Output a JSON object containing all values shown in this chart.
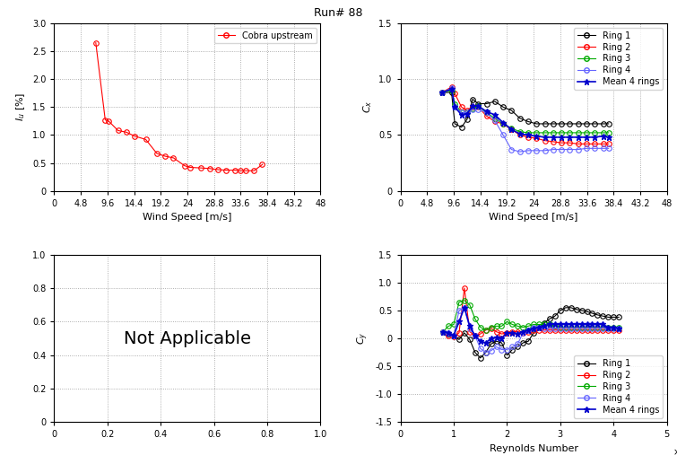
{
  "title": "Run# 88",
  "turb_wind_speed": [
    7.5,
    9.2,
    9.8,
    11.5,
    13.0,
    14.5,
    16.5,
    18.5,
    20.0,
    21.5,
    23.5,
    24.5,
    26.5,
    28.0,
    29.5,
    31.0,
    32.5,
    33.5,
    34.5,
    36.0,
    37.5
  ],
  "turb_intensity": [
    2.65,
    1.27,
    1.25,
    1.08,
    1.05,
    0.98,
    0.92,
    0.67,
    0.62,
    0.59,
    0.45,
    0.42,
    0.41,
    0.4,
    0.38,
    0.37,
    0.37,
    0.36,
    0.36,
    0.36,
    0.47
  ],
  "cx_wind_speed": [
    7.5,
    9.2,
    9.8,
    11.0,
    12.0,
    13.0,
    14.0,
    15.5,
    17.0,
    18.5,
    20.0,
    21.5,
    23.0,
    24.5,
    26.0,
    27.5,
    29.0,
    30.5,
    32.0,
    33.5,
    35.0,
    36.5,
    37.5
  ],
  "cx_ring1": [
    0.88,
    0.88,
    0.6,
    0.57,
    0.64,
    0.82,
    0.78,
    0.78,
    0.8,
    0.75,
    0.72,
    0.65,
    0.62,
    0.6,
    0.6,
    0.6,
    0.6,
    0.6,
    0.6,
    0.6,
    0.6,
    0.6,
    0.6
  ],
  "cx_ring2": [
    0.88,
    0.93,
    0.87,
    0.75,
    0.72,
    0.75,
    0.75,
    0.67,
    0.62,
    0.6,
    0.55,
    0.5,
    0.48,
    0.47,
    0.45,
    0.44,
    0.43,
    0.43,
    0.42,
    0.42,
    0.42,
    0.42,
    0.42
  ],
  "cx_ring3": [
    0.88,
    0.9,
    0.78,
    0.7,
    0.7,
    0.74,
    0.76,
    0.7,
    0.65,
    0.6,
    0.56,
    0.53,
    0.52,
    0.52,
    0.52,
    0.52,
    0.52,
    0.52,
    0.52,
    0.52,
    0.52,
    0.52,
    0.52
  ],
  "cx_ring4": [
    0.88,
    0.92,
    0.75,
    0.7,
    0.7,
    0.73,
    0.73,
    0.7,
    0.63,
    0.5,
    0.37,
    0.35,
    0.36,
    0.36,
    0.36,
    0.37,
    0.37,
    0.37,
    0.37,
    0.38,
    0.38,
    0.38,
    0.38
  ],
  "cx_mean": [
    0.88,
    0.91,
    0.75,
    0.68,
    0.69,
    0.76,
    0.76,
    0.71,
    0.68,
    0.61,
    0.55,
    0.51,
    0.5,
    0.49,
    0.48,
    0.48,
    0.48,
    0.48,
    0.48,
    0.48,
    0.48,
    0.49,
    0.48
  ],
  "cy_reynolds": [
    80000.0,
    90000.0,
    100000.0,
    110000.0,
    120000.0,
    130000.0,
    140000.0,
    150000.0,
    160000.0,
    170000.0,
    180000.0,
    190000.0,
    200000.0,
    210000.0,
    220000.0,
    230000.0,
    240000.0,
    250000.0,
    260000.0,
    270000.0,
    280000.0,
    290000.0,
    300000.0,
    310000.0,
    320000.0,
    330000.0,
    340000.0,
    350000.0,
    360000.0,
    370000.0,
    380000.0,
    390000.0,
    400000.0,
    410000.0
  ],
  "cy_ring1": [
    0.12,
    0.08,
    0.05,
    -0.02,
    0.1,
    -0.02,
    -0.25,
    -0.35,
    -0.25,
    -0.1,
    -0.05,
    -0.08,
    -0.3,
    -0.2,
    -0.15,
    -0.08,
    -0.05,
    0.1,
    0.2,
    0.28,
    0.35,
    0.4,
    0.5,
    0.55,
    0.55,
    0.52,
    0.5,
    0.48,
    0.45,
    0.42,
    0.4,
    0.38,
    0.38,
    0.38
  ],
  "cy_ring2": [
    0.12,
    0.05,
    0.03,
    0.1,
    0.9,
    0.12,
    0.05,
    0.08,
    0.15,
    0.18,
    0.12,
    0.08,
    0.1,
    0.12,
    0.12,
    0.1,
    0.12,
    0.15,
    0.15,
    0.15,
    0.15,
    0.15,
    0.15,
    0.15,
    0.15,
    0.15,
    0.15,
    0.15,
    0.15,
    0.15,
    0.15,
    0.15,
    0.15,
    0.15
  ],
  "cy_ring3": [
    0.12,
    0.22,
    0.25,
    0.65,
    0.68,
    0.6,
    0.35,
    0.2,
    0.15,
    0.2,
    0.22,
    0.22,
    0.3,
    0.25,
    0.22,
    0.2,
    0.22,
    0.25,
    0.25,
    0.25,
    0.25,
    0.22,
    0.2,
    0.2,
    0.2,
    0.2,
    0.2,
    0.2,
    0.2,
    0.2,
    0.2,
    0.2,
    0.2,
    0.2
  ],
  "cy_ring4": [
    0.12,
    0.1,
    0.05,
    0.5,
    0.55,
    0.18,
    0.05,
    -0.18,
    -0.25,
    -0.22,
    -0.15,
    -0.2,
    -0.2,
    -0.15,
    -0.1,
    0.1,
    0.15,
    0.2,
    0.2,
    0.18,
    0.18,
    0.18,
    0.18,
    0.18,
    0.18,
    0.18,
    0.18,
    0.18,
    0.18,
    0.18,
    0.18,
    0.18,
    0.18,
    0.18
  ],
  "cy_mean": [
    0.12,
    0.1,
    0.05,
    0.3,
    0.55,
    0.22,
    0.05,
    -0.05,
    -0.08,
    0.0,
    0.02,
    0.0,
    0.1,
    0.1,
    0.08,
    0.12,
    0.15,
    0.18,
    0.2,
    0.22,
    0.25,
    0.25,
    0.25,
    0.25,
    0.25,
    0.25,
    0.25,
    0.25,
    0.25,
    0.25,
    0.25,
    0.2,
    0.2,
    0.18
  ],
  "color_ring1": "#000000",
  "color_ring2": "#ff0000",
  "color_ring3": "#00aa00",
  "color_ring4": "#6666ff",
  "color_mean": "#0000cc",
  "color_turb": "#ff0000",
  "xticks_speed": [
    0,
    4.8,
    9.6,
    14.4,
    19.2,
    24.0,
    28.8,
    33.6,
    38.4,
    43.2,
    48.0
  ],
  "xtick_labels_speed": [
    "0",
    "4.8",
    "9.6",
    "14.4",
    "19.2",
    "24",
    "28.8",
    "33.6",
    "38.4",
    "43.2",
    "48"
  ],
  "yticks_turb": [
    0,
    0.5,
    1.0,
    1.5,
    2.0,
    2.5,
    3.0
  ],
  "yticks_cx": [
    0,
    0.5,
    1.0,
    1.5
  ],
  "yticks_cy": [
    -1.5,
    -1.0,
    -0.5,
    0,
    0.5,
    1.0,
    1.5
  ],
  "xticks_reynolds": [
    0,
    100000.0,
    200000.0,
    300000.0,
    400000.0,
    500000.0
  ],
  "xtick_labels_reynolds": [
    "0",
    "1",
    "2",
    "3",
    "4",
    "5"
  ],
  "bottom_left_yticks": [
    0,
    0.2,
    0.4,
    0.6,
    0.8,
    1.0
  ],
  "bottom_left_xticks": [
    0,
    0.2,
    0.4,
    0.6,
    0.8,
    1.0
  ]
}
